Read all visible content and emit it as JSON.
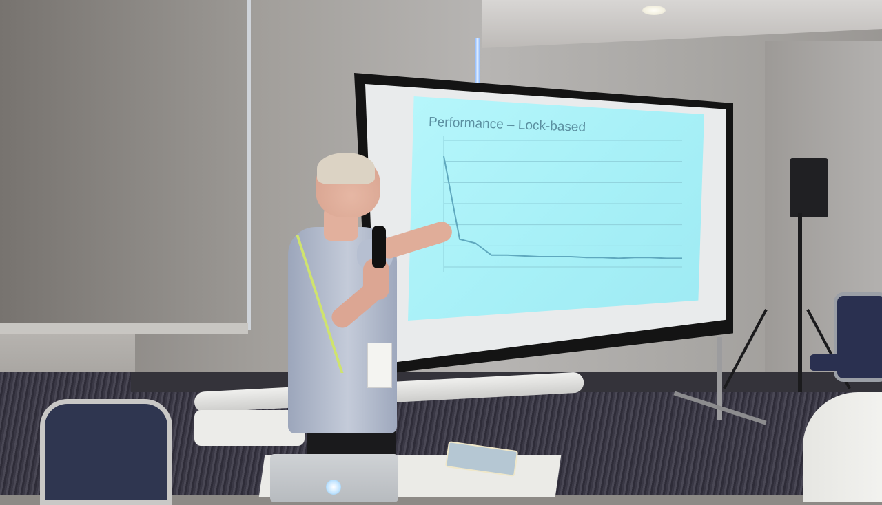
{
  "scene": {
    "description_type": "photo",
    "slide": {
      "title": "Performance – Lock-based"
    }
  },
  "colors": {
    "slide_bg": "#a7f0f7",
    "plot_line": "#5fa8be",
    "shirt": "#b6bfd1",
    "lanyard": "#cfe36e"
  },
  "icons": {
    "laptop_logo": "apple-logo-icon"
  },
  "chart_data": {
    "type": "line",
    "title": "Performance – Lock-based",
    "x": [
      1,
      2,
      3,
      4,
      5,
      6,
      7,
      8,
      9,
      10,
      11,
      12,
      13,
      14,
      15,
      16
    ],
    "series": [
      {
        "values": [
          140,
          35,
          30,
          15,
          15,
          14,
          13,
          13,
          13,
          12,
          12,
          11,
          12,
          12,
          11,
          11
        ]
      }
    ],
    "ylim": [
      0,
      160
    ],
    "grid": true
  }
}
